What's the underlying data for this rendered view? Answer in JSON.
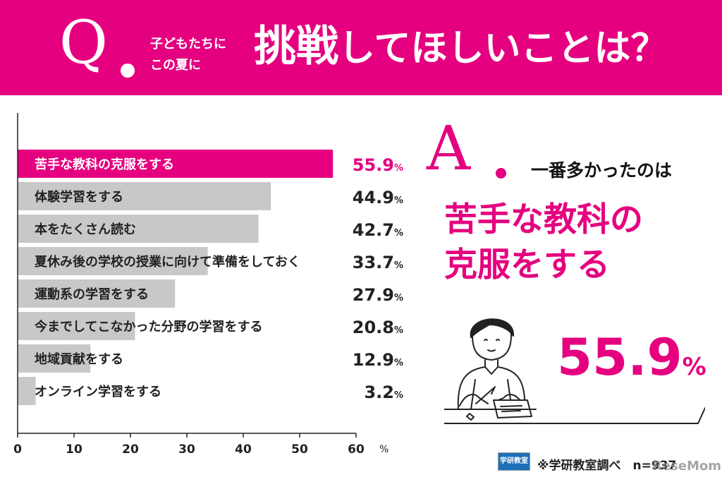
{
  "header": {
    "q_letter": "Q",
    "q_small_line1": "子どもたちに",
    "q_small_line2": "この夏に",
    "q_em": "挑戦",
    "q_rest": "してほしいことは？"
  },
  "answer": {
    "a_letter": "A",
    "intro": "一番多かったのは",
    "main_line1": "苦手な教科の",
    "main_line2": "克服をする",
    "pct_value": "55.9",
    "pct_unit": "%"
  },
  "footer": {
    "logo_text": "学研教室",
    "source": "※学研教室調べ　n=937",
    "watermark": "ReseMom"
  },
  "colors": {
    "accent": "#e5007f",
    "bar_gray": "#c8c8c8",
    "text": "#222222"
  },
  "chart_data": {
    "type": "bar",
    "orientation": "horizontal",
    "categories": [
      "苦手な教科の克服をする",
      "体験学習をする",
      "本をたくさん読む",
      "夏休み後の学校の授業に向けて準備をしておく",
      "運動系の学習をする",
      "今までしてこなかった分野の学習をする",
      "地域貢献をする",
      "オンライン学習をする"
    ],
    "values": [
      55.9,
      44.9,
      42.7,
      33.7,
      27.9,
      20.8,
      12.9,
      3.2
    ],
    "value_labels": [
      "55.9",
      "44.9",
      "42.7",
      "33.7",
      "27.9",
      "20.8",
      "12.9",
      "3.2"
    ],
    "value_suffix": "%",
    "highlight_index": 0,
    "xlim": [
      0,
      60
    ],
    "xticks": [
      "0",
      "10",
      "20",
      "30",
      "40",
      "50",
      "60"
    ],
    "xunit": "%",
    "grid": false
  }
}
